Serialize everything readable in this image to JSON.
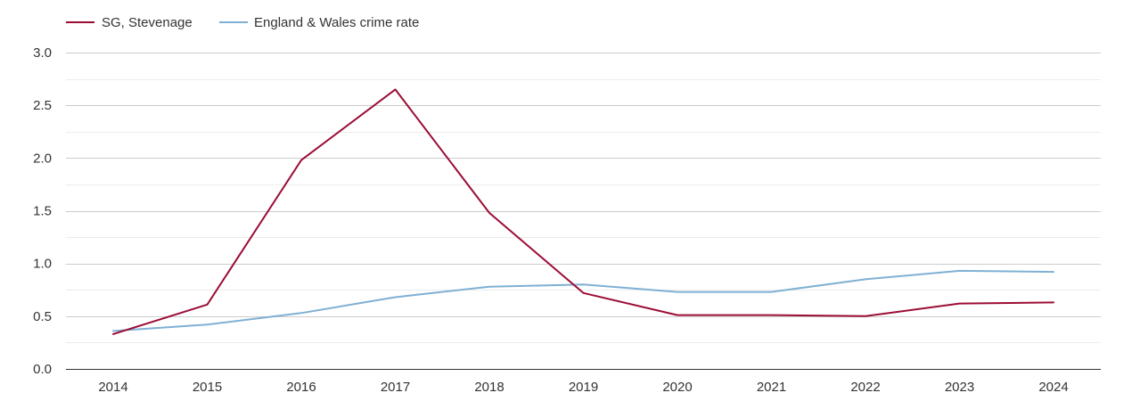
{
  "chart_data": {
    "type": "line",
    "title": "",
    "xlabel": "",
    "ylabel": "",
    "categories": [
      "2014",
      "2015",
      "2016",
      "2017",
      "2018",
      "2019",
      "2020",
      "2021",
      "2022",
      "2023",
      "2024"
    ],
    "ylim": [
      0,
      3.0
    ],
    "y_ticks": [
      "0.0",
      "0.5",
      "1.0",
      "1.5",
      "2.0",
      "2.5",
      "3.0"
    ],
    "grid": true,
    "legend_position": "top-left",
    "series": [
      {
        "name": "SG, Stevenage",
        "color": "#9b0d35",
        "values": [
          0.33,
          0.61,
          1.98,
          2.65,
          1.48,
          0.72,
          0.51,
          0.51,
          0.5,
          0.62,
          0.63
        ]
      },
      {
        "name": "England & Wales crime rate",
        "color": "#7fb0d3",
        "values": [
          0.36,
          0.42,
          0.53,
          0.68,
          0.78,
          0.8,
          0.73,
          0.73,
          0.85,
          0.93,
          0.92
        ]
      }
    ]
  }
}
